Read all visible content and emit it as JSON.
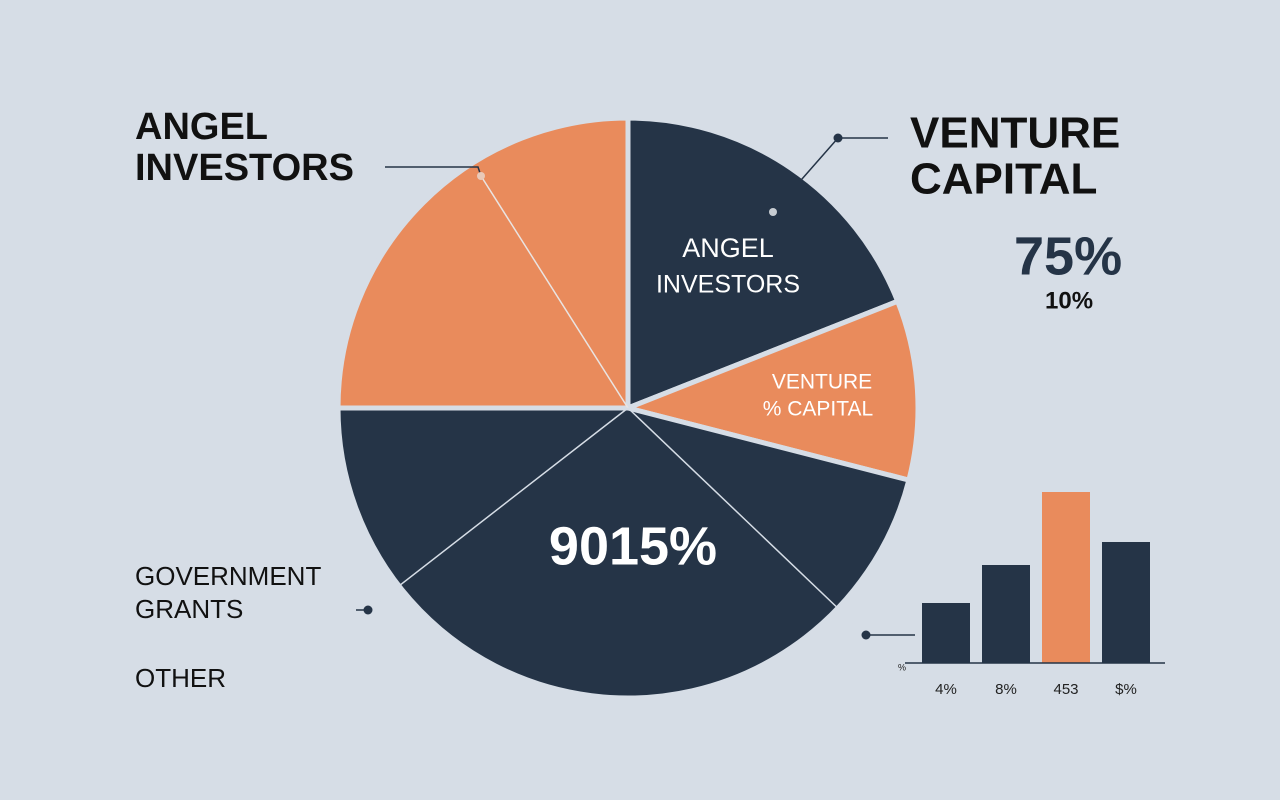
{
  "chart_data": [
    {
      "type": "pie",
      "values": [
        25,
        19,
        10,
        46
      ],
      "colors": [
        "#e98b5c",
        "#253447",
        "#e98b5c",
        "#253447"
      ],
      "slice_labels": [
        null,
        [
          "ANGEL",
          "INVESTORS"
        ],
        [
          "VENTURE",
          "% CAPITAL"
        ],
        [
          "9015%"
        ]
      ],
      "annotations": [
        {
          "lines": [
            "ANGEL",
            "INVESTORS"
          ]
        },
        {
          "lines": [
            "VENTURE",
            "CAPITAL"
          ]
        },
        {
          "text": "75%"
        },
        {
          "text": "10%"
        },
        {
          "lines": [
            "GOVERNMENT",
            "GRANTS"
          ]
        },
        {
          "text": "OTHER"
        }
      ]
    },
    {
      "type": "bar",
      "categories": [
        "4%",
        "8%",
        "453",
        "$%"
      ],
      "values": [
        60,
        98,
        171,
        121
      ],
      "colors": [
        "#253447",
        "#253447",
        "#e98b5c",
        "#253447"
      ],
      "ylim": [
        0,
        180
      ],
      "y_label": "%"
    }
  ]
}
